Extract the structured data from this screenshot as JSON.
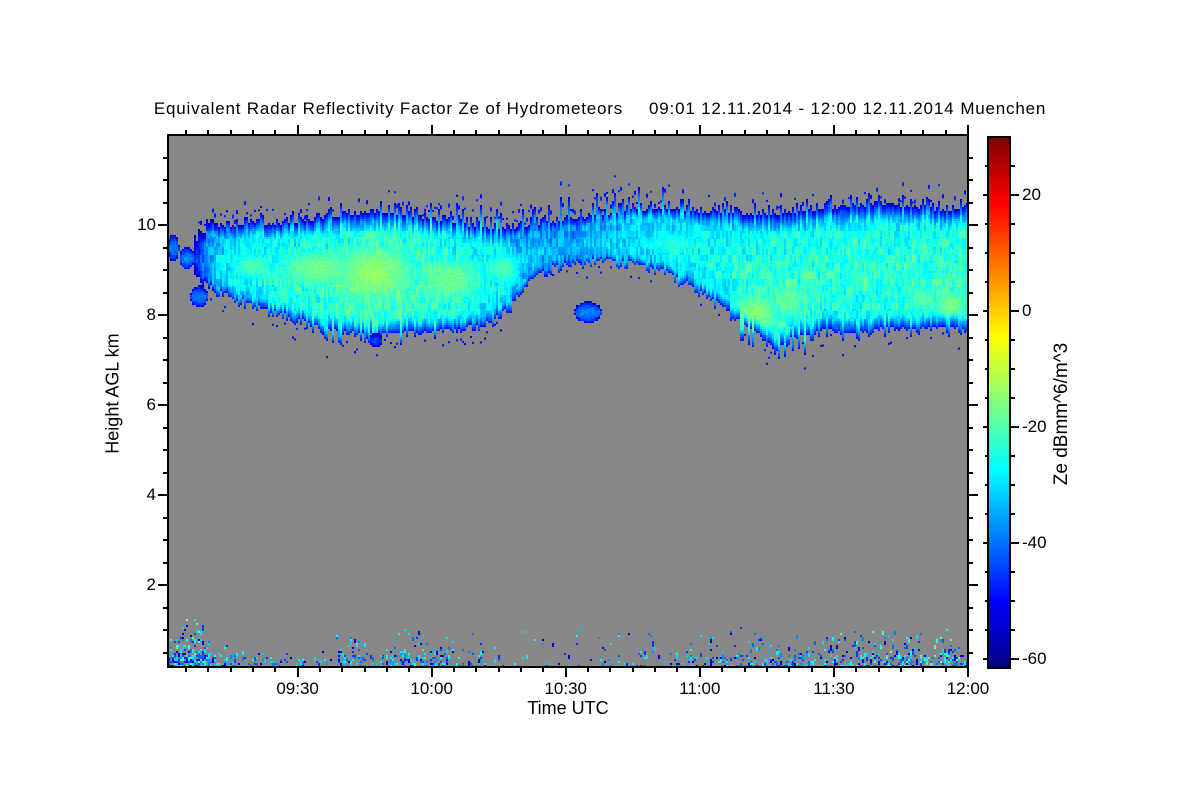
{
  "title": {
    "text": "Equivalent Radar Reflectivity Factor Ze of Hydrometeors",
    "period": "09:01 12.11.2014 - 12:00 12.11.2014",
    "station": "Muenchen"
  },
  "chart_data": {
    "type": "heatmap",
    "title": "Equivalent Radar Reflectivity Factor Ze of Hydrometeors",
    "time_range": "09:01 12.11.2014 - 12:00 12.11.2014",
    "station": "Muenchen",
    "xlabel": "Time UTC",
    "ylabel": "Height AGL km",
    "colorbar_label": "Ze dBmm^6/m^3",
    "plot_background": "#878787",
    "frame_color": "#000000",
    "colormap": "jet",
    "x_axis": {
      "range_minutes": [
        541,
        720
      ],
      "minor_step_minutes": 5,
      "major_ticks": [
        {
          "minute": 570,
          "label": "09:30"
        },
        {
          "minute": 600,
          "label": "10:00"
        },
        {
          "minute": 630,
          "label": "10:30"
        },
        {
          "minute": 660,
          "label": "11:00"
        },
        {
          "minute": 690,
          "label": "11:30"
        },
        {
          "minute": 720,
          "label": "12:00"
        }
      ]
    },
    "y_axis": {
      "range_km": [
        0.18,
        12.0
      ],
      "minor_step_km": 0.5,
      "major_ticks": [
        {
          "km": 2,
          "label": "2"
        },
        {
          "km": 4,
          "label": "4"
        },
        {
          "km": 6,
          "label": "6"
        },
        {
          "km": 8,
          "label": "8"
        },
        {
          "km": 10,
          "label": "10"
        }
      ]
    },
    "colorbar": {
      "range_db": [
        -61.5,
        30
      ],
      "minor_step_db": 5,
      "major_ticks": [
        {
          "db": 20,
          "label": "20"
        },
        {
          "db": 0,
          "label": "0"
        },
        {
          "db": -20,
          "label": "-20"
        },
        {
          "db": -40,
          "label": "-40"
        },
        {
          "db": -60,
          "label": "-60"
        }
      ]
    },
    "cloud_band": {
      "comment": "upper hydrometeor layer; points = [minute_of_day, base_km, top_km, core_dB]",
      "default_top_fray": 0.3,
      "default_base_fray": 0.22,
      "top_fray": [
        [
          598,
          652,
          0.55
        ]
      ],
      "base_fray": [
        [
          572,
          600,
          0.32
        ],
        [
          666,
          684,
          0.5
        ]
      ],
      "points": [
        [
          547,
          8.9,
          9.6,
          -40
        ],
        [
          550,
          8.7,
          9.9,
          -35
        ],
        [
          555,
          8.45,
          9.95,
          -32
        ],
        [
          560,
          8.25,
          10.0,
          -30
        ],
        [
          565,
          8.1,
          10.0,
          -28
        ],
        [
          570,
          7.95,
          10.05,
          -27
        ],
        [
          575,
          7.75,
          10.1,
          -26
        ],
        [
          580,
          7.65,
          10.2,
          -25
        ],
        [
          585,
          7.6,
          10.25,
          -24
        ],
        [
          590,
          7.6,
          10.25,
          -24
        ],
        [
          595,
          7.65,
          10.2,
          -25
        ],
        [
          600,
          7.65,
          10.1,
          -25
        ],
        [
          605,
          7.7,
          10.0,
          -27
        ],
        [
          610,
          7.8,
          9.95,
          -28
        ],
        [
          615,
          8.0,
          9.9,
          -30
        ],
        [
          618,
          8.3,
          9.9,
          -33
        ],
        [
          622,
          8.8,
          9.95,
          -36
        ],
        [
          627,
          9.1,
          10.05,
          -38
        ],
        [
          632,
          9.2,
          10.1,
          -38
        ],
        [
          638,
          9.25,
          10.2,
          -36
        ],
        [
          645,
          9.2,
          10.3,
          -33
        ],
        [
          652,
          9.0,
          10.35,
          -31
        ],
        [
          658,
          8.7,
          10.3,
          -30
        ],
        [
          664,
          8.3,
          10.25,
          -29
        ],
        [
          670,
          7.8,
          10.2,
          -27
        ],
        [
          676,
          7.45,
          10.2,
          -26
        ],
        [
          682,
          7.55,
          10.3,
          -26
        ],
        [
          688,
          7.7,
          10.35,
          -27
        ],
        [
          695,
          7.6,
          10.4,
          -27
        ],
        [
          702,
          7.75,
          10.45,
          -27
        ],
        [
          708,
          7.7,
          10.35,
          -26
        ],
        [
          714,
          7.75,
          10.3,
          -26
        ],
        [
          720,
          7.7,
          10.35,
          -25
        ]
      ],
      "green_patches": [
        [
          555,
          565,
          8.8,
          9.4,
          -20
        ],
        [
          565,
          585,
          8.6,
          9.5,
          -17
        ],
        [
          578,
          596,
          8.3,
          9.6,
          -14
        ],
        [
          596,
          612,
          8.3,
          9.3,
          -17
        ],
        [
          612,
          620,
          8.7,
          9.4,
          -20
        ],
        [
          648,
          660,
          9.3,
          9.9,
          -24
        ],
        [
          667,
          678,
          7.6,
          8.5,
          -15
        ],
        [
          676,
          684,
          7.9,
          8.8,
          -18
        ],
        [
          692,
          700,
          8.4,
          9.2,
          -22
        ],
        [
          705,
          714,
          8.0,
          8.8,
          -20
        ],
        [
          712,
          720,
          7.9,
          8.6,
          -16
        ]
      ],
      "isolated_blobs": [
        [
          541,
          543.5,
          9.2,
          9.8,
          -45
        ],
        [
          543.5,
          547,
          9.05,
          9.5,
          -44
        ],
        [
          546,
          550,
          8.2,
          8.65,
          -45
        ],
        [
          586,
          589,
          7.3,
          7.6,
          -50
        ],
        [
          632,
          638,
          7.85,
          8.3,
          -44
        ]
      ]
    },
    "surface_layer": {
      "comment": "boundary-layer speckle; clusters = [minute0, minute1, top_km, density, greens]",
      "clusters": [
        [
          541,
          549,
          1.3,
          0.9,
          1
        ],
        [
          549,
          556,
          0.9,
          0.45,
          0
        ],
        [
          556,
          571,
          0.55,
          0.25,
          0
        ],
        [
          571,
          579,
          0.6,
          0.12,
          0
        ],
        [
          579,
          585,
          1.05,
          0.45,
          0
        ],
        [
          585,
          591,
          0.75,
          0.2,
          0
        ],
        [
          591,
          604,
          1.05,
          0.5,
          0
        ],
        [
          604,
          612,
          1.15,
          0.18,
          0
        ],
        [
          612,
          640,
          1.2,
          0.08,
          0
        ],
        [
          640,
          655,
          1.1,
          0.15,
          0
        ],
        [
          655,
          664,
          1.25,
          0.3,
          0
        ],
        [
          664,
          675,
          1.1,
          0.35,
          0
        ],
        [
          675,
          690,
          1.0,
          0.45,
          0
        ],
        [
          690,
          720,
          1.05,
          0.55,
          1
        ]
      ]
    }
  }
}
